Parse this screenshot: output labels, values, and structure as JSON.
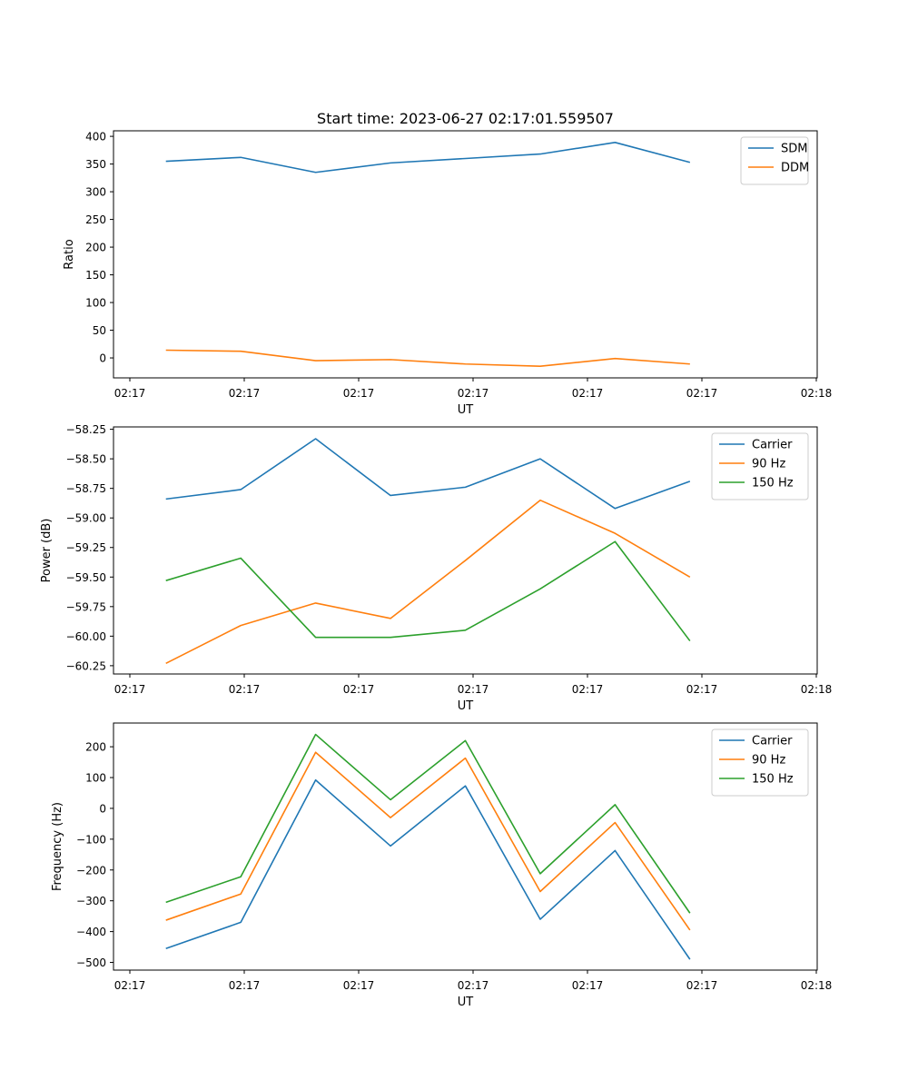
{
  "figure": {
    "title": "Start time: 2023-06-27 02:17:01.559507"
  },
  "chart_data": [
    {
      "type": "line",
      "xlabel": "UT",
      "ylabel": "Ratio",
      "x_tick_labels": [
        "02:17",
        "02:17",
        "02:17",
        "02:17",
        "02:17",
        "02:17",
        "02:18"
      ],
      "x": [
        1,
        2,
        3,
        4,
        5,
        6,
        7,
        8
      ],
      "xlim": [
        0.3,
        9.7
      ],
      "ylim": [
        -36,
        410
      ],
      "yticks": [
        0,
        50,
        100,
        150,
        200,
        250,
        300,
        350,
        400
      ],
      "ytick_labels": [
        "0",
        "50",
        "100",
        "150",
        "200",
        "250",
        "300",
        "350",
        "400"
      ],
      "grid": false,
      "legend_position": "top-right",
      "series": [
        {
          "name": "SDM",
          "color": "#1f77b4",
          "values": [
            355,
            362,
            335,
            352,
            360,
            368,
            389,
            353
          ]
        },
        {
          "name": "DDM",
          "color": "#ff7f0e",
          "values": [
            14,
            12,
            -5,
            -3,
            -11,
            -15,
            -1,
            -11
          ]
        }
      ]
    },
    {
      "type": "line",
      "xlabel": "UT",
      "ylabel": "Power (dB)",
      "x_tick_labels": [
        "02:17",
        "02:17",
        "02:17",
        "02:17",
        "02:17",
        "02:17",
        "02:18"
      ],
      "x": [
        1,
        2,
        3,
        4,
        5,
        6,
        7,
        8
      ],
      "xlim": [
        0.3,
        9.7
      ],
      "ylim": [
        -60.32,
        -58.23
      ],
      "yticks": [
        -60.25,
        -60.0,
        -59.75,
        -59.5,
        -59.25,
        -59.0,
        -58.75,
        -58.5,
        -58.25
      ],
      "ytick_labels": [
        "−60.25",
        "−60.00",
        "−59.75",
        "−59.50",
        "−59.25",
        "−59.00",
        "−58.75",
        "−58.50",
        "−58.25"
      ],
      "grid": false,
      "legend_position": "top-right",
      "series": [
        {
          "name": "Carrier",
          "color": "#1f77b4",
          "values": [
            -58.84,
            -58.76,
            -58.33,
            -58.81,
            -58.74,
            -58.5,
            -58.92,
            -58.69
          ]
        },
        {
          "name": "90 Hz",
          "color": "#ff7f0e",
          "values": [
            -60.23,
            -59.91,
            -59.72,
            -59.85,
            -59.36,
            -58.85,
            -59.13,
            -59.5
          ]
        },
        {
          "name": "150 Hz",
          "color": "#2ca02c",
          "values": [
            -59.53,
            -59.34,
            -60.01,
            -60.01,
            -59.95,
            -59.6,
            -59.2,
            -60.04
          ]
        }
      ]
    },
    {
      "type": "line",
      "xlabel": "UT",
      "ylabel": "Frequency (Hz)",
      "x_tick_labels": [
        "02:17",
        "02:17",
        "02:17",
        "02:17",
        "02:17",
        "02:17",
        "02:18"
      ],
      "x": [
        1,
        2,
        3,
        4,
        5,
        6,
        7,
        8
      ],
      "xlim": [
        0.3,
        9.7
      ],
      "ylim": [
        -525,
        277
      ],
      "yticks": [
        -500,
        -400,
        -300,
        -200,
        -100,
        0,
        100,
        200
      ],
      "ytick_labels": [
        "−500",
        "−400",
        "−300",
        "−200",
        "−100",
        "0",
        "100",
        "200"
      ],
      "grid": false,
      "legend_position": "top-right",
      "series": [
        {
          "name": "Carrier",
          "color": "#1f77b4",
          "values": [
            -455,
            -370,
            92,
            -122,
            73,
            -360,
            -137,
            -490
          ]
        },
        {
          "name": "90 Hz",
          "color": "#ff7f0e",
          "values": [
            -363,
            -278,
            182,
            -30,
            163,
            -270,
            -46,
            -395
          ]
        },
        {
          "name": "150 Hz",
          "color": "#2ca02c",
          "values": [
            -305,
            -222,
            240,
            28,
            220,
            -212,
            12,
            -340
          ]
        }
      ]
    }
  ]
}
